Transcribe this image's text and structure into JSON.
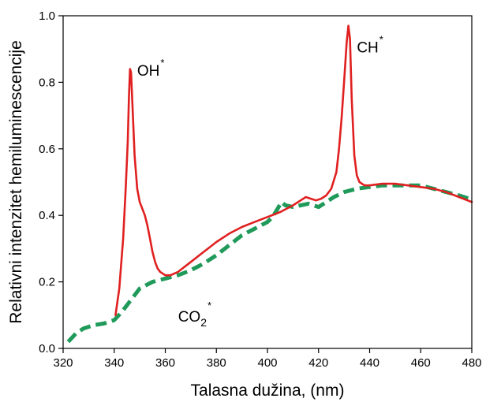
{
  "chart_data": {
    "type": "line",
    "xlabel": "Talasna dužina, (nm)",
    "ylabel": "Relativni intenzitet hemiluminescencije",
    "xlim": [
      320,
      480
    ],
    "ylim": [
      0.0,
      1.0
    ],
    "x_ticks": [
      "320",
      "340",
      "360",
      "380",
      "400",
      "420",
      "440",
      "460",
      "480"
    ],
    "y_ticks": [
      "0.0",
      "0.2",
      "0.4",
      "0.6",
      "0.8",
      "1.0"
    ],
    "grid": false,
    "annotations": [
      {
        "id": "oh",
        "base": "OH",
        "sub": "",
        "sup": "*",
        "x": 349,
        "y": 0.82
      },
      {
        "id": "ch",
        "base": "CH",
        "sub": "",
        "sup": "*",
        "x": 435,
        "y": 0.89
      },
      {
        "id": "co2",
        "base": "CO",
        "sub": "2",
        "sup": "*",
        "x": 365,
        "y": 0.08
      }
    ],
    "series": [
      {
        "color": "#e02020",
        "style": "solid",
        "x": [
          340.5,
          342,
          343.5,
          344.5,
          345.3,
          345.8,
          346.2,
          346.6,
          347.2,
          348,
          349,
          350,
          351,
          352,
          353,
          354,
          355,
          356,
          357,
          358,
          360,
          362,
          365,
          370,
          375,
          380,
          385,
          390,
          395,
          400,
          405,
          410,
          413,
          415,
          417,
          419,
          421,
          423,
          425,
          427,
          428,
          429,
          430,
          431,
          431.7,
          432.3,
          433,
          434,
          435,
          436,
          438,
          440,
          445,
          450,
          455,
          460,
          465,
          470,
          475,
          480
        ],
        "y": [
          0.1,
          0.18,
          0.33,
          0.48,
          0.62,
          0.76,
          0.84,
          0.83,
          0.72,
          0.58,
          0.48,
          0.44,
          0.42,
          0.4,
          0.37,
          0.33,
          0.29,
          0.26,
          0.24,
          0.23,
          0.22,
          0.22,
          0.23,
          0.26,
          0.29,
          0.32,
          0.345,
          0.365,
          0.38,
          0.395,
          0.41,
          0.43,
          0.445,
          0.455,
          0.45,
          0.445,
          0.45,
          0.46,
          0.48,
          0.53,
          0.6,
          0.69,
          0.8,
          0.92,
          0.97,
          0.93,
          0.75,
          0.58,
          0.52,
          0.5,
          0.49,
          0.49,
          0.495,
          0.495,
          0.49,
          0.485,
          0.48,
          0.47,
          0.455,
          0.44
        ]
      },
      {
        "color": "#1f9a5a",
        "style": "dashed",
        "x": [
          322,
          325,
          328,
          332,
          336,
          340,
          343,
          346,
          350,
          355,
          360,
          365,
          370,
          375,
          380,
          385,
          390,
          395,
          400,
          402,
          404,
          405.5,
          407,
          410,
          413,
          416,
          418,
          420,
          423,
          426,
          430,
          435,
          440,
          445,
          450,
          455,
          460,
          465,
          470,
          475,
          479
        ],
        "y": [
          0.02,
          0.045,
          0.06,
          0.07,
          0.075,
          0.085,
          0.11,
          0.14,
          0.18,
          0.2,
          0.21,
          0.22,
          0.235,
          0.255,
          0.28,
          0.31,
          0.34,
          0.36,
          0.38,
          0.395,
          0.42,
          0.44,
          0.43,
          0.425,
          0.43,
          0.435,
          0.43,
          0.425,
          0.44,
          0.455,
          0.47,
          0.48,
          0.485,
          0.49,
          0.49,
          0.49,
          0.49,
          0.48,
          0.47,
          0.46,
          0.45
        ]
      }
    ]
  }
}
